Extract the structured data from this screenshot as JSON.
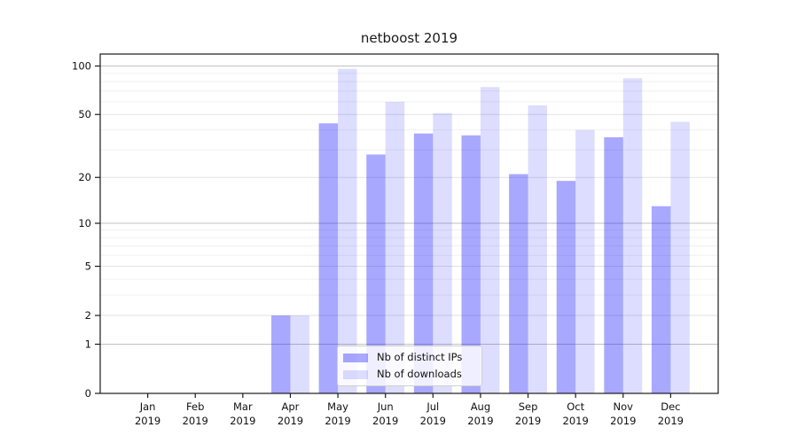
{
  "chart_data": {
    "type": "bar",
    "title": "netboost 2019",
    "categories": [
      "Jan",
      "Feb",
      "Mar",
      "Apr",
      "May",
      "Jun",
      "Jul",
      "Aug",
      "Sep",
      "Oct",
      "Nov",
      "Dec"
    ],
    "year_label": "2019",
    "series": [
      {
        "name": "Nb of distinct IPs",
        "color": "#0000ff",
        "alpha": 0.34,
        "values": [
          0,
          0,
          0,
          2,
          44,
          28,
          38,
          37,
          21,
          19,
          36,
          13
        ]
      },
      {
        "name": "Nb of downloads",
        "color": "#0000ff",
        "alpha": 0.135,
        "values": [
          0,
          0,
          0,
          2,
          96,
          60,
          51,
          74,
          57,
          40,
          84,
          45
        ]
      }
    ],
    "y_axis": {
      "scale": "symlog (log1p)",
      "range": [
        0,
        119
      ],
      "tick_labels": [
        "100",
        "50",
        "20",
        "10",
        "5",
        "2",
        "1",
        "0"
      ],
      "labeled_ticks": [
        100,
        50,
        20,
        10,
        5,
        2,
        1,
        0
      ],
      "decade_gridlines": [
        1,
        10,
        100
      ],
      "submajor_gridlines": [
        2,
        5,
        20,
        50
      ],
      "minor_gridlines": [
        3,
        4,
        6,
        7,
        8,
        9,
        30,
        40,
        60,
        70,
        80,
        90
      ]
    },
    "legend": {
      "position": "lower center",
      "labels": [
        "Nb of distinct IPs",
        "Nb of downloads"
      ]
    },
    "grid": true,
    "colors": {
      "grid_decade": "#c2c2c2",
      "grid_submajor": "#e2e2e2",
      "grid_minor": "#f0f0f0",
      "spine": "#1a1a1a",
      "tick": "#1a1a1a",
      "text": "#111111",
      "background": "#ffffff"
    }
  }
}
